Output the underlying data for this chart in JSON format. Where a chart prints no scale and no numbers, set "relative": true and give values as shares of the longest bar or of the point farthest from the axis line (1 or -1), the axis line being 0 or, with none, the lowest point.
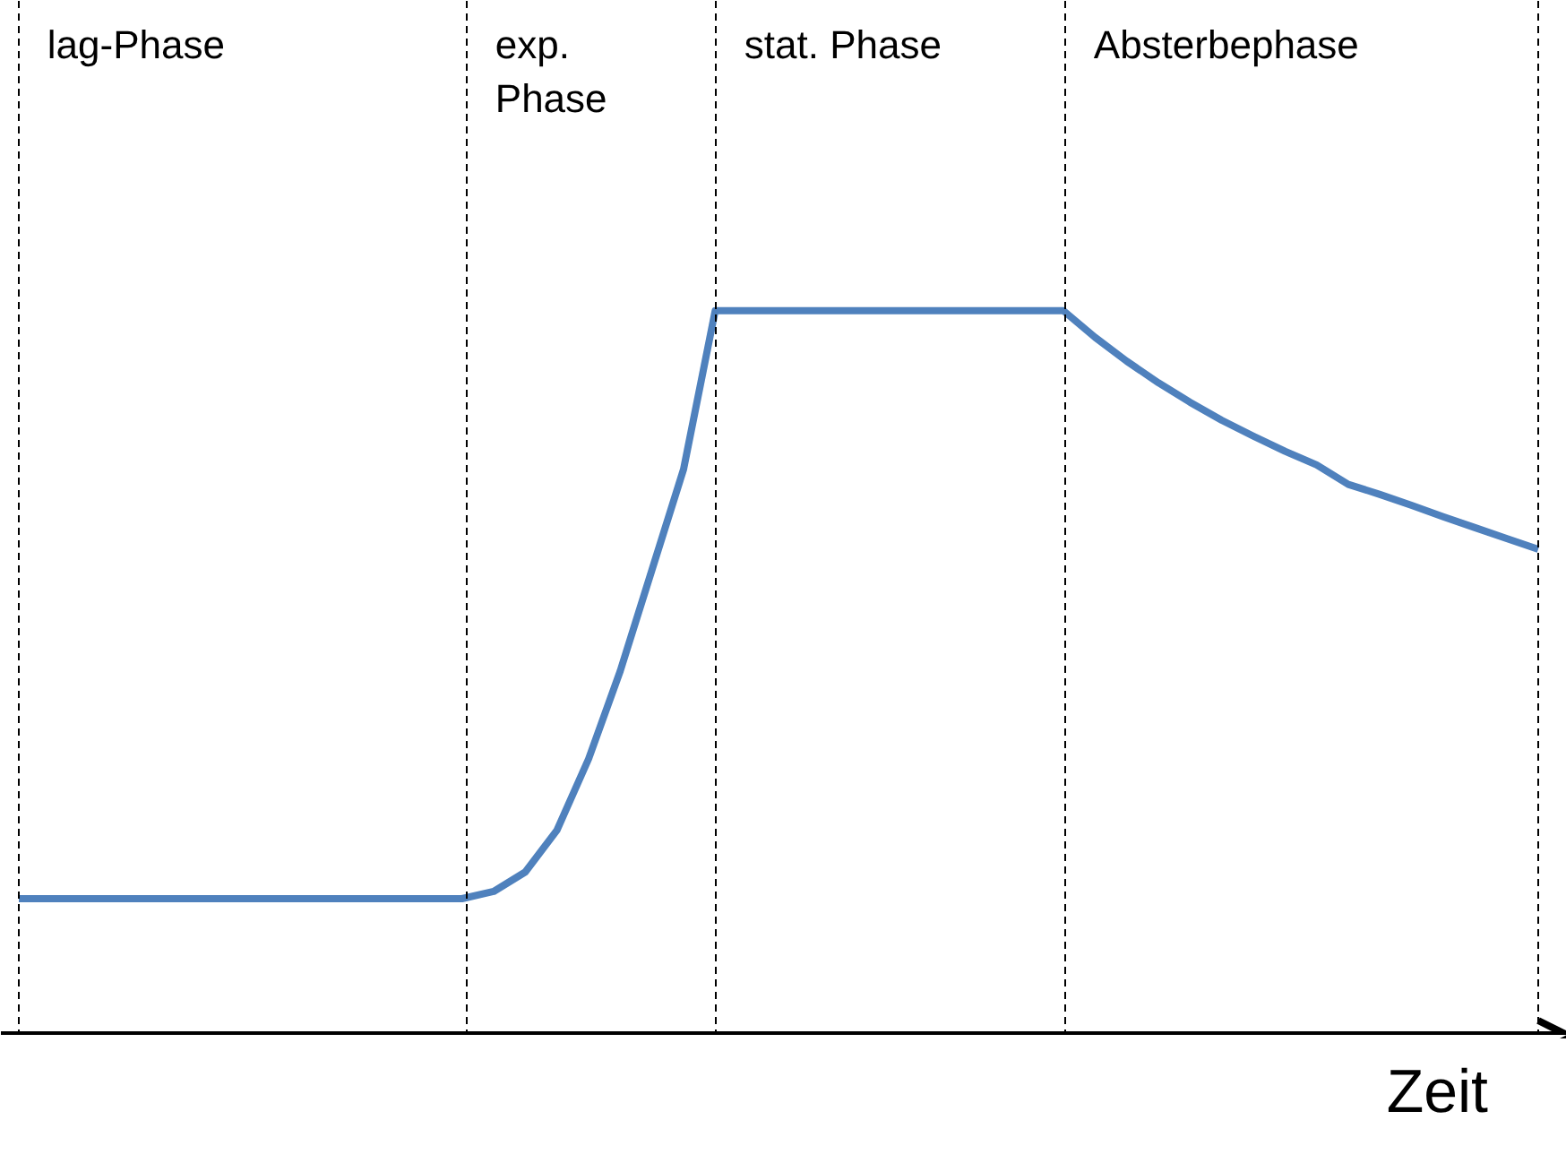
{
  "chart_data": {
    "type": "line",
    "relative": true,
    "xlabel": "Zeit",
    "annotations": [
      "lag-Phase",
      "exp.\nPhase",
      "stat. Phase",
      "Absterbephase"
    ],
    "grid": "x",
    "marker": "none",
    "line_style": "solid",
    "categories": [
      null,
      null,
      null,
      null,
      null,
      null,
      null,
      null,
      null,
      null,
      null,
      null,
      null,
      null,
      null,
      null,
      null,
      null,
      null,
      null,
      null,
      null,
      null,
      null,
      null,
      null,
      null,
      null,
      null,
      null,
      null,
      null,
      null,
      null,
      null,
      null,
      null,
      null,
      null,
      null,
      null,
      null,
      null,
      null,
      null,
      null,
      null,
      null,
      null
    ],
    "series": [
      {
        "color": "#4f81bd",
        "values": [
          0.184,
          0.184,
          0.184,
          0.184,
          0.184,
          0.184,
          0.184,
          0.184,
          0.184,
          0.184,
          0.184,
          0.184,
          0.184,
          0.184,
          0.184,
          0.194,
          0.221,
          0.279,
          0.378,
          0.5,
          0.64,
          0.78,
          1,
          1,
          1,
          1,
          1,
          1,
          1,
          1,
          1,
          1,
          1,
          1,
          0.963,
          0.93,
          0.9,
          0.873,
          0.848,
          0.826,
          0.805,
          0.786,
          0.759,
          0.745,
          0.73,
          0.714,
          0.699,
          0.684,
          0.669
        ]
      }
    ]
  }
}
